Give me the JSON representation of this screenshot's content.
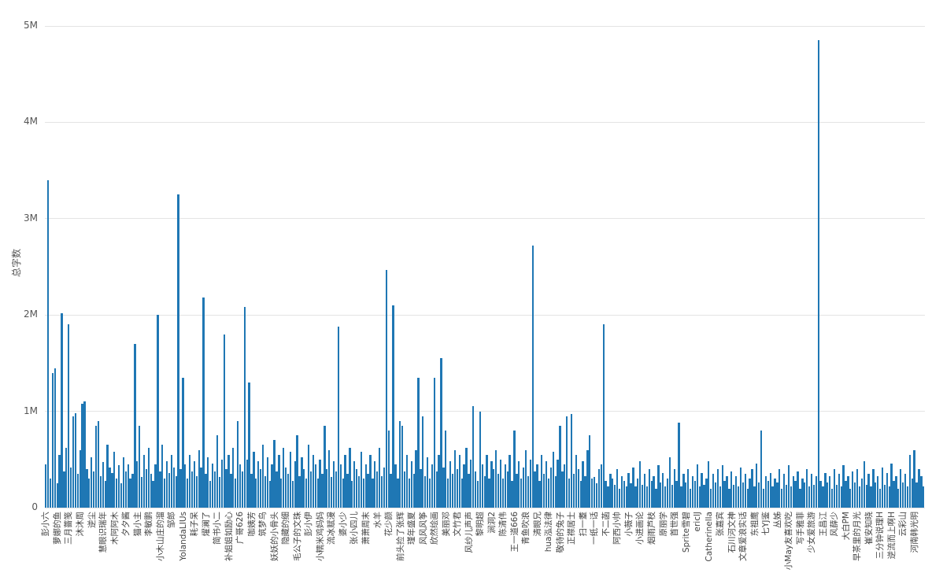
{
  "chart_data": {
    "type": "bar",
    "title": "",
    "xlabel": "",
    "ylabel": "总字数",
    "y_ticks": [
      "0",
      "1M",
      "2M",
      "3M",
      "4M",
      "5M"
    ],
    "ylim": [
      0,
      5000000
    ],
    "grid": true,
    "legend": "none",
    "bar_color": "#1f77b4",
    "gridline_color": "#e4e4e4",
    "label_every": 5,
    "categories": [
      "彭小六",
      "萝娜的鱼",
      "三月蔷笺",
      "沐沐周",
      "逆尘",
      "慧眼识瑞年",
      "木阿阿木",
      "夕夕酱",
      "猫小主",
      "李敏鹏",
      "小木山庄的溜",
      "邹郎",
      "YolandaLIUs",
      "耗子呆",
      "燿澜了",
      "简书小二",
      "补姐姐如励心",
      "广哥626",
      "咖姨芳",
      "筑梦鸟",
      "妖妖的小骨头",
      "隐藏的细",
      "毛公子的文珠",
      "彭小伊",
      "小糯米鸡妈妈",
      "流冰赋漫",
      "婆小少",
      "张小四儿",
      "萧萧周末",
      "水羊",
      "花少颜",
      "前头捡了张辉",
      "瑾年盛夏",
      "风风风筝",
      "欣然绘画",
      "美丽邓",
      "文竹君",
      "风纱儿声声",
      "黎明超",
      "涧洞2",
      "陈清伟",
      "王一道666",
      "青鱼吹浪",
      "清眼兄",
      "hua泓法律",
      "敬待的兔子",
      "正襟居士",
      "扫一耋",
      "一纸一话",
      "不二菡",
      "阿西小帅",
      "小薇子",
      "小进画论",
      "烟雨芦枝",
      "原丽学",
      "首世强",
      "Sprite雪碧",
      "ericlJ",
      "Catherinella",
      "张嘉宾",
      "石川河文神",
      "文章爱浪实话",
      "东祖鹰",
      "七YJ鉴",
      "丛姊",
      "小May友喜欢吃",
      "写手雅菲",
      "少女爱旅游",
      "王昌江",
      "风薛少",
      "大白PM",
      "早茶里的月光",
      "崔安知晓",
      "三分钟说理H",
      "逆流而上啊H",
      "云彩山",
      "河南韩光明"
    ],
    "values_m": [
      0.45,
      3.4,
      0.3,
      1.4,
      1.45,
      0.25,
      0.55,
      2.02,
      0.38,
      0.62,
      1.9,
      0.42,
      0.95,
      0.98,
      0.35,
      0.6,
      1.08,
      1.1,
      0.4,
      0.3,
      0.52,
      0.38,
      0.85,
      0.9,
      0.33,
      0.47,
      0.28,
      0.65,
      0.42,
      0.36,
      0.58,
      0.3,
      0.44,
      0.25,
      0.52,
      0.38,
      0.45,
      0.3,
      0.35,
      1.7,
      0.48,
      0.85,
      0.32,
      0.55,
      0.4,
      0.62,
      0.35,
      0.28,
      0.45,
      2.0,
      0.38,
      0.65,
      0.3,
      0.48,
      0.36,
      0.55,
      0.42,
      0.33,
      3.25,
      0.4,
      1.35,
      0.45,
      0.3,
      0.55,
      0.38,
      0.48,
      0.33,
      0.6,
      0.42,
      2.18,
      0.35,
      0.52,
      0.28,
      0.46,
      0.38,
      0.75,
      0.32,
      0.5,
      1.8,
      0.4,
      0.55,
      0.35,
      0.62,
      0.3,
      0.9,
      0.45,
      0.38,
      2.08,
      0.5,
      1.3,
      0.35,
      0.58,
      0.3,
      0.48,
      0.4,
      0.65,
      0.33,
      0.52,
      0.28,
      0.45,
      0.7,
      0.38,
      0.55,
      0.3,
      0.62,
      0.42,
      0.35,
      0.58,
      0.28,
      0.48,
      0.75,
      0.33,
      0.52,
      0.4,
      0.3,
      0.65,
      0.38,
      0.55,
      0.45,
      0.3,
      0.5,
      0.35,
      0.85,
      0.4,
      0.6,
      0.32,
      0.48,
      0.38,
      1.88,
      0.45,
      0.3,
      0.55,
      0.35,
      0.62,
      0.28,
      0.48,
      0.4,
      0.33,
      0.58,
      0.3,
      0.45,
      0.35,
      0.55,
      0.3,
      0.48,
      0.38,
      0.62,
      0.33,
      0.42,
      2.47,
      0.8,
      0.35,
      2.1,
      0.45,
      0.3,
      0.9,
      0.85,
      0.38,
      0.55,
      0.3,
      0.48,
      0.35,
      0.6,
      1.35,
      0.4,
      0.95,
      0.33,
      0.52,
      0.3,
      0.45,
      1.35,
      0.38,
      0.55,
      1.55,
      0.42,
      0.8,
      0.3,
      0.48,
      0.35,
      0.6,
      0.4,
      0.55,
      0.3,
      0.45,
      0.62,
      0.35,
      0.5,
      1.05,
      0.38,
      0.28,
      1.0,
      0.45,
      0.33,
      0.55,
      0.3,
      0.48,
      0.4,
      0.6,
      0.35,
      0.5,
      0.3,
      0.45,
      0.38,
      0.55,
      0.28,
      0.8,
      0.35,
      0.48,
      0.3,
      0.42,
      0.6,
      0.33,
      0.5,
      2.72,
      0.38,
      0.45,
      0.28,
      0.55,
      0.35,
      0.48,
      0.3,
      0.42,
      0.58,
      0.33,
      0.5,
      0.85,
      0.38,
      0.45,
      0.95,
      0.3,
      0.97,
      0.35,
      0.55,
      0.4,
      0.28,
      0.48,
      0.33,
      0.6,
      0.75,
      0.3,
      0.32,
      0.25,
      0.4,
      0.45,
      1.9,
      0.28,
      0.22,
      0.35,
      0.3,
      0.24,
      0.4,
      0.2,
      0.33,
      0.28,
      0.22,
      0.36,
      0.25,
      0.42,
      0.22,
      0.3,
      0.48,
      0.24,
      0.35,
      0.22,
      0.4,
      0.28,
      0.33,
      0.2,
      0.44,
      0.26,
      0.36,
      0.22,
      0.3,
      0.52,
      0.24,
      0.4,
      0.28,
      0.88,
      0.22,
      0.35,
      0.26,
      0.4,
      0.2,
      0.33,
      0.28,
      0.45,
      0.22,
      0.36,
      0.24,
      0.3,
      0.48,
      0.2,
      0.35,
      0.26,
      0.4,
      0.22,
      0.44,
      0.28,
      0.33,
      0.2,
      0.38,
      0.24,
      0.33,
      0.22,
      0.42,
      0.26,
      0.35,
      0.2,
      0.3,
      0.4,
      0.22,
      0.46,
      0.26,
      0.8,
      0.2,
      0.33,
      0.28,
      0.36,
      0.22,
      0.3,
      0.26,
      0.4,
      0.2,
      0.35,
      0.24,
      0.44,
      0.22,
      0.33,
      0.28,
      0.38,
      0.2,
      0.3,
      0.26,
      0.4,
      0.22,
      0.35,
      0.24,
      0.33,
      4.85,
      0.28,
      0.22,
      0.36,
      0.26,
      0.33,
      0.2,
      0.4,
      0.24,
      0.35,
      0.22,
      0.44,
      0.28,
      0.33,
      0.2,
      0.38,
      0.26,
      0.4,
      0.22,
      0.3,
      0.48,
      0.24,
      0.35,
      0.22,
      0.4,
      0.26,
      0.33,
      0.2,
      0.42,
      0.24,
      0.36,
      0.22,
      0.46,
      0.28,
      0.33,
      0.2,
      0.4,
      0.26,
      0.35,
      0.22,
      0.55,
      0.3,
      0.6,
      0.26,
      0.4,
      0.33,
      0.22
    ]
  }
}
